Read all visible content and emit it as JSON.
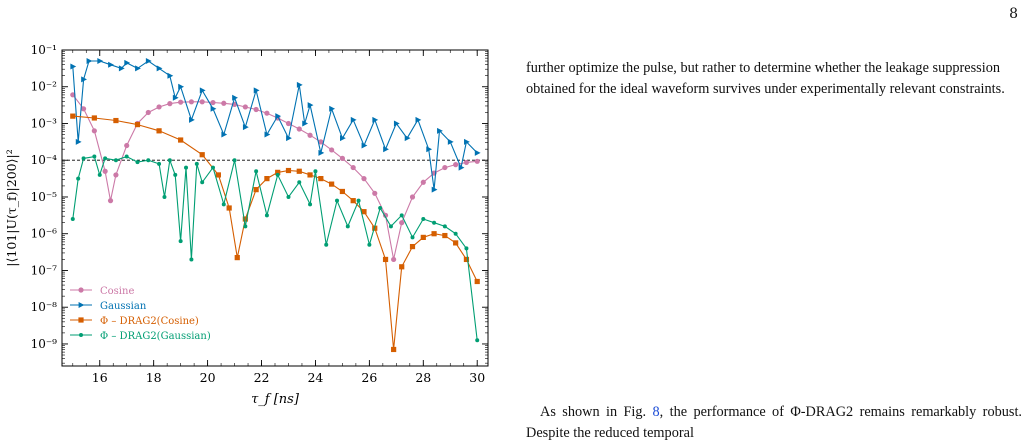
{
  "page_number": "8",
  "paragraph_top": "further optimize the pulse, but rather to determine whether the leakage suppression obtained for the ideal waveform survives under experimentally relevant constraints.",
  "paragraph_bottom": {
    "before": "As shown in Fig. ",
    "fig_ref": "8",
    "after": ", the performance of Φ-DRAG2 remains remarkably robust. Despite the reduced temporal"
  },
  "colors": {
    "cosine": "#cc79a7",
    "gaussian": "#0072b2",
    "drag_cosine": "#d55e00",
    "drag_gaussian": "#009e73"
  },
  "chart_data": {
    "type": "line",
    "xlabel": "τ_f [ns]",
    "ylabel": "|⟨101|U(τ_f)|200⟩|²",
    "xlim": [
      14.6,
      30.4
    ],
    "ylim_log10": [
      -9.6,
      -1
    ],
    "yscale": "log",
    "x_ticks": [
      16,
      18,
      20,
      22,
      24,
      26,
      28,
      30
    ],
    "y_ticks": [
      {
        "exp": -1,
        "label": "10⁻¹"
      },
      {
        "exp": -2,
        "label": "10⁻²"
      },
      {
        "exp": -3,
        "label": "10⁻³"
      },
      {
        "exp": -4,
        "label": "10⁻⁴"
      },
      {
        "exp": -5,
        "label": "10⁻⁵"
      },
      {
        "exp": -6,
        "label": "10⁻⁶"
      },
      {
        "exp": -7,
        "label": "10⁻⁷"
      },
      {
        "exp": -8,
        "label": "10⁻⁸"
      },
      {
        "exp": -9,
        "label": "10⁻⁹"
      }
    ],
    "reference_line": {
      "y": 0.0001,
      "style": "dashed"
    },
    "legend_position": "bottom-left",
    "series": [
      {
        "name": "Cosine",
        "color_key": "cosine",
        "marker": "circle",
        "points": [
          [
            15,
            -2.22
          ],
          [
            15.4,
            -2.6
          ],
          [
            15.8,
            -3.2
          ],
          [
            16.2,
            -4.3
          ],
          [
            16.4,
            -5.1
          ],
          [
            16.6,
            -4.4
          ],
          [
            17,
            -3.6
          ],
          [
            17.4,
            -3.0
          ],
          [
            17.8,
            -2.7
          ],
          [
            18.2,
            -2.55
          ],
          [
            18.6,
            -2.46
          ],
          [
            19,
            -2.42
          ],
          [
            19.4,
            -2.41
          ],
          [
            19.8,
            -2.41
          ],
          [
            20.2,
            -2.43
          ],
          [
            20.6,
            -2.45
          ],
          [
            21,
            -2.48
          ],
          [
            21.4,
            -2.55
          ],
          [
            21.8,
            -2.62
          ],
          [
            22.2,
            -2.72
          ],
          [
            22.6,
            -2.85
          ],
          [
            23,
            -3.0
          ],
          [
            23.4,
            -3.15
          ],
          [
            23.8,
            -3.32
          ],
          [
            24.2,
            -3.5
          ],
          [
            24.6,
            -3.72
          ],
          [
            25,
            -3.95
          ],
          [
            25.4,
            -4.2
          ],
          [
            25.8,
            -4.5
          ],
          [
            26.2,
            -4.9
          ],
          [
            26.6,
            -5.5
          ],
          [
            26.9,
            -6.7
          ],
          [
            27.2,
            -5.7
          ],
          [
            27.6,
            -5.0
          ],
          [
            28,
            -4.6
          ],
          [
            28.4,
            -4.35
          ],
          [
            28.8,
            -4.2
          ],
          [
            29.2,
            -4.12
          ],
          [
            29.6,
            -4.06
          ],
          [
            30,
            -4.03
          ]
        ]
      },
      {
        "name": "Gaussian",
        "color_key": "gaussian",
        "marker": "triangle",
        "points": [
          [
            15,
            -1.45
          ],
          [
            15.2,
            -3.5
          ],
          [
            15.4,
            -1.8
          ],
          [
            15.6,
            -1.3
          ],
          [
            16,
            -1.3
          ],
          [
            16.4,
            -1.4
          ],
          [
            16.8,
            -1.5
          ],
          [
            17,
            -1.35
          ],
          [
            17.4,
            -1.5
          ],
          [
            17.8,
            -1.3
          ],
          [
            18.2,
            -1.5
          ],
          [
            18.6,
            -1.7
          ],
          [
            18.8,
            -2.3
          ],
          [
            19,
            -2.0
          ],
          [
            19.4,
            -2.9
          ],
          [
            19.8,
            -2.1
          ],
          [
            20.2,
            -2.6
          ],
          [
            20.6,
            -3.3
          ],
          [
            21,
            -2.3
          ],
          [
            21.4,
            -3.1
          ],
          [
            21.8,
            -2.1
          ],
          [
            22.2,
            -3.3
          ],
          [
            22.6,
            -2.8
          ],
          [
            23,
            -3.4
          ],
          [
            23.4,
            -1.95
          ],
          [
            23.6,
            -3.0
          ],
          [
            23.8,
            -2.5
          ],
          [
            24.2,
            -3.8
          ],
          [
            24.6,
            -2.6
          ],
          [
            25,
            -3.4
          ],
          [
            25.4,
            -2.9
          ],
          [
            25.8,
            -3.6
          ],
          [
            26.2,
            -2.9
          ],
          [
            26.6,
            -3.7
          ],
          [
            27,
            -3.0
          ],
          [
            27.4,
            -3.4
          ],
          [
            27.8,
            -2.9
          ],
          [
            28.2,
            -3.7
          ],
          [
            28.4,
            -4.8
          ],
          [
            28.6,
            -3.2
          ],
          [
            29,
            -3.5
          ],
          [
            29.4,
            -4.2
          ],
          [
            29.6,
            -3.5
          ],
          [
            30,
            -3.8
          ]
        ]
      },
      {
        "name": "Φ – DRAG2(Cosine)",
        "color_key": "drag_cosine",
        "marker": "square",
        "points": [
          [
            15,
            -2.8
          ],
          [
            15.8,
            -2.85
          ],
          [
            16.6,
            -2.92
          ],
          [
            17.4,
            -3.03
          ],
          [
            18.2,
            -3.2
          ],
          [
            19,
            -3.45
          ],
          [
            19.8,
            -3.85
          ],
          [
            20.4,
            -4.4
          ],
          [
            20.8,
            -5.3
          ],
          [
            21.1,
            -6.65
          ],
          [
            21.4,
            -5.6
          ],
          [
            21.8,
            -4.8
          ],
          [
            22.2,
            -4.5
          ],
          [
            22.6,
            -4.33
          ],
          [
            23,
            -4.28
          ],
          [
            23.4,
            -4.3
          ],
          [
            23.8,
            -4.4
          ],
          [
            24.2,
            -4.5
          ],
          [
            24.6,
            -4.65
          ],
          [
            25,
            -4.85
          ],
          [
            25.4,
            -5.1
          ],
          [
            25.8,
            -5.4
          ],
          [
            26.2,
            -5.85
          ],
          [
            26.6,
            -6.7
          ],
          [
            26.9,
            -9.15
          ],
          [
            27.2,
            -6.9
          ],
          [
            27.6,
            -6.35
          ],
          [
            28,
            -6.1
          ],
          [
            28.4,
            -6.0
          ],
          [
            28.8,
            -6.05
          ],
          [
            29.2,
            -6.25
          ],
          [
            29.6,
            -6.7
          ],
          [
            30,
            -7.3
          ]
        ]
      },
      {
        "name": "Φ – DRAG2(Gaussian)",
        "color_key": "drag_gaussian",
        "marker": "circle-small",
        "points": [
          [
            15,
            -5.6
          ],
          [
            15.2,
            -4.5
          ],
          [
            15.4,
            -3.95
          ],
          [
            15.8,
            -3.9
          ],
          [
            16,
            -4.4
          ],
          [
            16.2,
            -3.95
          ],
          [
            16.6,
            -4.0
          ],
          [
            17,
            -3.9
          ],
          [
            17.4,
            -4.05
          ],
          [
            17.8,
            -4.0
          ],
          [
            18.2,
            -4.1
          ],
          [
            18.4,
            -5.0
          ],
          [
            18.6,
            -4.0
          ],
          [
            18.8,
            -4.4
          ],
          [
            19,
            -6.2
          ],
          [
            19.2,
            -4.2
          ],
          [
            19.4,
            -6.7
          ],
          [
            19.6,
            -4.1
          ],
          [
            19.8,
            -4.6
          ],
          [
            20.2,
            -4.2
          ],
          [
            20.6,
            -5.2
          ],
          [
            21,
            -4.0
          ],
          [
            21.4,
            -5.8
          ],
          [
            21.8,
            -4.3
          ],
          [
            22.2,
            -5.5
          ],
          [
            22.6,
            -4.4
          ],
          [
            23,
            -5.0
          ],
          [
            23.4,
            -4.6
          ],
          [
            23.8,
            -5.2
          ],
          [
            24,
            -4.3
          ],
          [
            24.4,
            -6.3
          ],
          [
            24.8,
            -5.1
          ],
          [
            25.2,
            -5.8
          ],
          [
            25.6,
            -5.1
          ],
          [
            26,
            -6.3
          ],
          [
            26.4,
            -5.3
          ],
          [
            26.8,
            -5.8
          ],
          [
            27.2,
            -5.5
          ],
          [
            27.6,
            -6.1
          ],
          [
            28,
            -5.6
          ],
          [
            28.4,
            -5.7
          ],
          [
            28.8,
            -5.8
          ],
          [
            29.2,
            -6.0
          ],
          [
            29.6,
            -6.4
          ],
          [
            30,
            -8.9
          ]
        ]
      }
    ]
  }
}
